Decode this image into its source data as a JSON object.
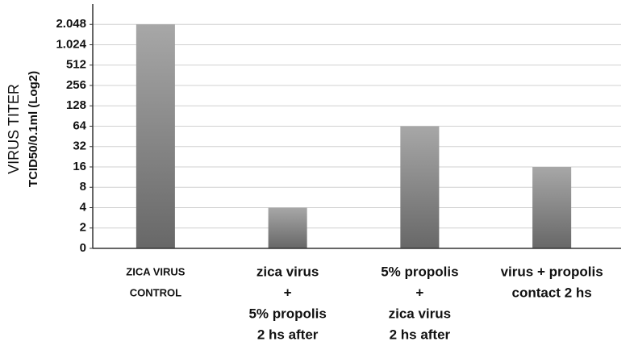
{
  "chart_data": {
    "type": "bar",
    "y_label_lines": [
      "VIRUS TITER",
      "TCID50/0.1ml (Log2)"
    ],
    "categories": [
      [
        "ZICA VIRUS",
        "CONTROL"
      ],
      [
        "zica virus",
        "+",
        "5% propolis",
        "2 hs after"
      ],
      [
        "5% propolis",
        "+",
        "zica virus",
        "2 hs after"
      ],
      [
        "virus + propolis",
        "contact 2 hs"
      ]
    ],
    "values": [
      2048,
      4,
      64,
      16
    ],
    "color": "#8a8a8a",
    "log_base": 2,
    "ylim": [
      0,
      4096
    ],
    "yticks": [
      0,
      2,
      4,
      8,
      16,
      32,
      64,
      128,
      256,
      512,
      {
        "value": 1024,
        "label": "1.024"
      },
      {
        "value": 2048,
        "label": "2.048"
      }
    ],
    "grid": true
  }
}
